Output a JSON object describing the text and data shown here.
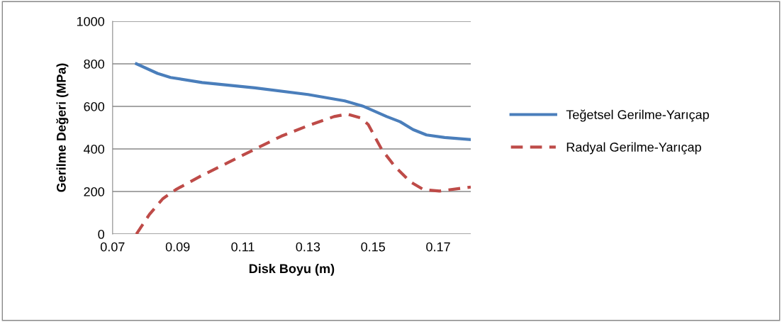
{
  "chart_data": {
    "type": "line",
    "xlabel": "Disk Boyu (m)",
    "ylabel": "Gerilme Değeri (MPa)",
    "xlim": [
      0.07,
      0.18
    ],
    "xticks": [
      0.07,
      0.09,
      0.11,
      0.13,
      0.15,
      0.17
    ],
    "ylim": [
      0,
      1000
    ],
    "yticks": [
      0,
      200,
      400,
      600,
      800,
      1000
    ],
    "grid": "y",
    "legend": "right",
    "series": [
      {
        "name": "Teğetsel Gerilme-Yarıçap",
        "color": "#4a7ebb",
        "line_style": "solid",
        "x": [
          0.0773,
          0.0838,
          0.0878,
          0.0975,
          0.1137,
          0.13,
          0.1413,
          0.1469,
          0.1542,
          0.1583,
          0.1623,
          0.1664,
          0.172,
          0.18
        ],
        "values": [
          800,
          755,
          736,
          712,
          687,
          656,
          626,
          601,
          552,
          528,
          491,
          466,
          454,
          444
        ]
      },
      {
        "name": "Radyal Gerilme-Yarıçap",
        "color": "#be4b48",
        "line_style": "dashed",
        "x": [
          0.0773,
          0.0813,
          0.0854,
          0.0894,
          0.0975,
          0.1056,
          0.1137,
          0.1218,
          0.13,
          0.138,
          0.142,
          0.1461,
          0.1485,
          0.1526,
          0.1566,
          0.1615,
          0.1655,
          0.1704,
          0.18
        ],
        "values": [
          0,
          92,
          166,
          209,
          276,
          337,
          399,
          460,
          509,
          552,
          564,
          546,
          515,
          399,
          319,
          245,
          209,
          202,
          221
        ]
      }
    ]
  }
}
